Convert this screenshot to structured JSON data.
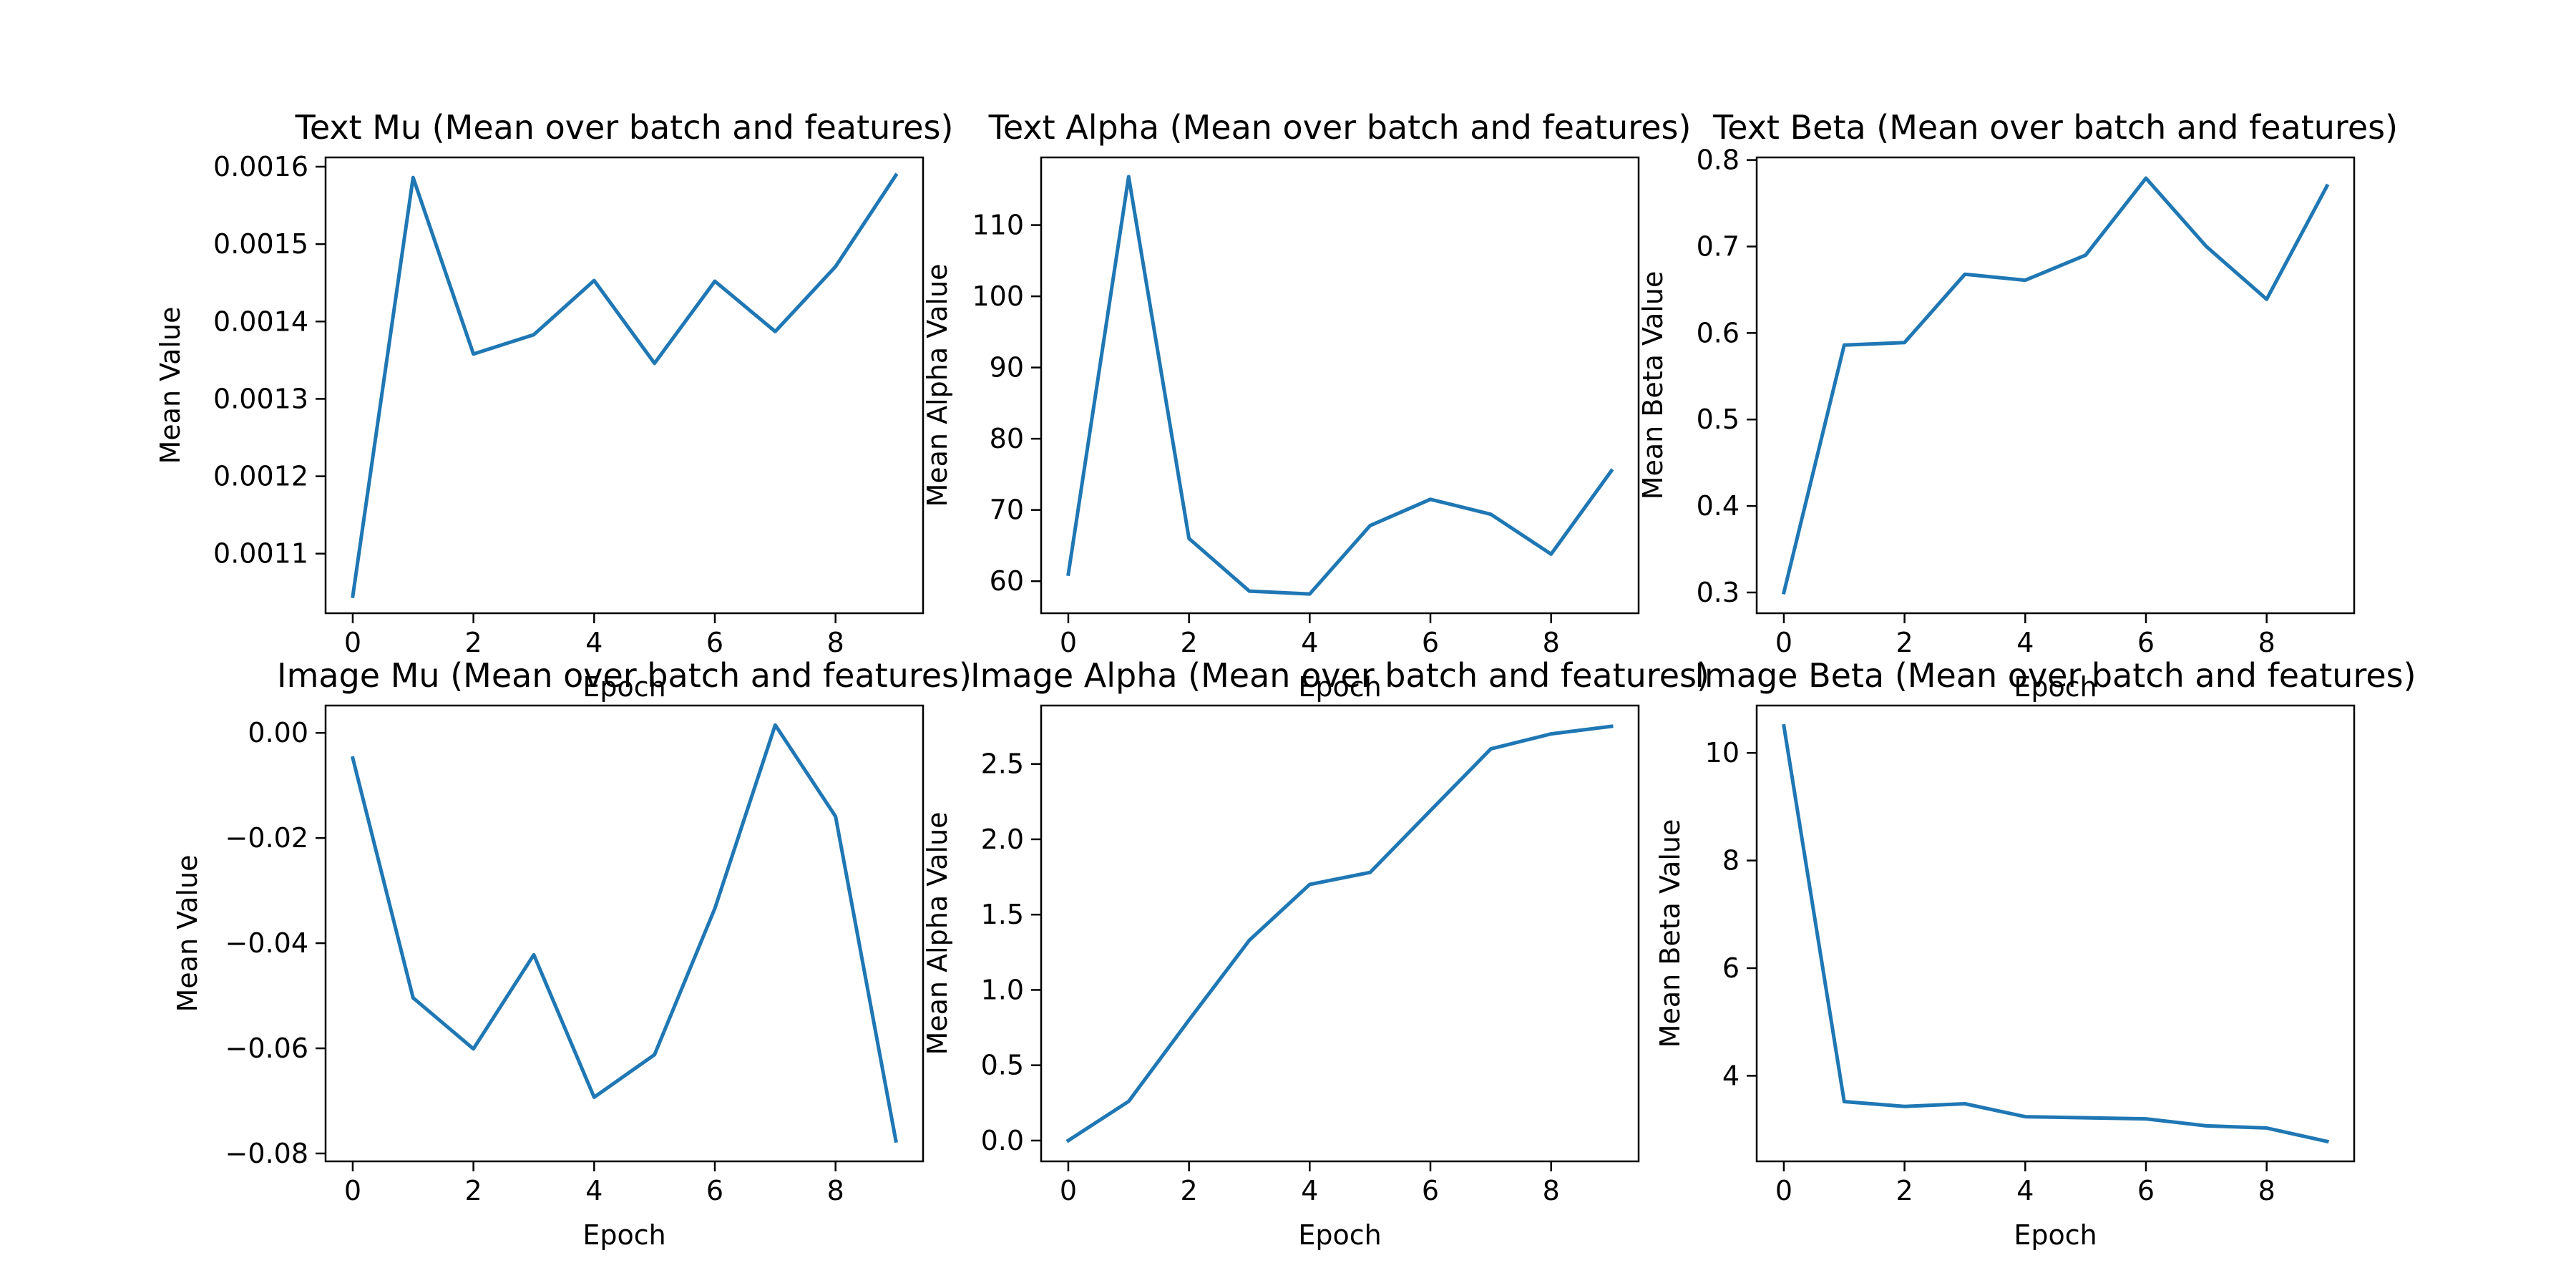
{
  "colors": {
    "line": "#1f77b4",
    "axes": "#000000",
    "background": "#ffffff"
  },
  "chart_data": [
    {
      "type": "line",
      "title": "Text Mu (Mean over batch and features)",
      "xlabel": "Epoch",
      "ylabel": "Mean Value",
      "grid": false,
      "xlim": [
        -0.45,
        9.45
      ],
      "ylim": [
        0.001023,
        0.001612
      ],
      "xticks": [
        0,
        2,
        4,
        6,
        8
      ],
      "xtick_labels": [
        "0",
        "2",
        "4",
        "6",
        "8"
      ],
      "yticks": [
        0.0011,
        0.0012,
        0.0013,
        0.0014,
        0.0015,
        0.0016
      ],
      "ytick_labels": [
        "0.0011",
        "0.0012",
        "0.0013",
        "0.0014",
        "0.0015",
        "0.0016"
      ],
      "x": [
        0,
        1,
        2,
        3,
        4,
        5,
        6,
        7,
        8,
        9
      ],
      "y": [
        0.001045,
        0.001586,
        0.001358,
        0.001383,
        0.001453,
        0.001346,
        0.001452,
        0.001387,
        0.001471,
        0.001589
      ]
    },
    {
      "type": "line",
      "title": "Text Alpha (Mean over batch and features)",
      "xlabel": "Epoch",
      "ylabel": "Mean Alpha Value",
      "grid": false,
      "xlim": [
        -0.45,
        9.45
      ],
      "ylim": [
        55.5,
        119.5
      ],
      "xticks": [
        0,
        2,
        4,
        6,
        8
      ],
      "xtick_labels": [
        "0",
        "2",
        "4",
        "6",
        "8"
      ],
      "yticks": [
        60,
        70,
        80,
        90,
        100,
        110
      ],
      "ytick_labels": [
        "60",
        "70",
        "80",
        "90",
        "100",
        "110"
      ],
      "x": [
        0,
        1,
        2,
        3,
        4,
        5,
        6,
        7,
        8,
        9
      ],
      "y": [
        61.0,
        116.8,
        66.0,
        58.6,
        58.2,
        67.8,
        71.5,
        69.4,
        63.8,
        75.5
      ]
    },
    {
      "type": "line",
      "title": "Text Beta (Mean over batch and features)",
      "xlabel": "Epoch",
      "ylabel": "Mean Beta Value",
      "grid": false,
      "xlim": [
        -0.45,
        9.45
      ],
      "ylim": [
        0.276,
        0.803
      ],
      "xticks": [
        0,
        2,
        4,
        6,
        8
      ],
      "xtick_labels": [
        "0",
        "2",
        "4",
        "6",
        "8"
      ],
      "yticks": [
        0.3,
        0.4,
        0.5,
        0.6,
        0.7,
        0.8
      ],
      "ytick_labels": [
        "0.3",
        "0.4",
        "0.5",
        "0.6",
        "0.7",
        "0.8"
      ],
      "x": [
        0,
        1,
        2,
        3,
        4,
        5,
        6,
        7,
        8,
        9
      ],
      "y": [
        0.3,
        0.586,
        0.589,
        0.668,
        0.661,
        0.69,
        0.779,
        0.7,
        0.639,
        0.77
      ]
    },
    {
      "type": "line",
      "title": "Image Mu (Mean over batch and features)",
      "xlabel": "Epoch",
      "ylabel": "Mean Value",
      "grid": false,
      "xlim": [
        -0.45,
        9.45
      ],
      "ylim": [
        -0.0815,
        0.0052
      ],
      "xticks": [
        0,
        2,
        4,
        6,
        8
      ],
      "xtick_labels": [
        "0",
        "2",
        "4",
        "6",
        "8"
      ],
      "yticks": [
        -0.08,
        -0.06,
        -0.04,
        -0.02,
        0.0
      ],
      "ytick_labels": [
        "−0.08",
        "−0.06",
        "−0.04",
        "−0.02",
        "0.00"
      ],
      "x": [
        0,
        1,
        2,
        3,
        4,
        5,
        6,
        7,
        8,
        9
      ],
      "y": [
        -0.0048,
        -0.0504,
        -0.0601,
        -0.0422,
        -0.0693,
        -0.0612,
        -0.0334,
        0.0015,
        -0.0159,
        -0.0776
      ]
    },
    {
      "type": "line",
      "title": "Image Alpha (Mean over batch and features)",
      "xlabel": "Epoch",
      "ylabel": "Mean Alpha Value",
      "grid": false,
      "xlim": [
        -0.45,
        9.45
      ],
      "ylim": [
        -0.138,
        2.888
      ],
      "xticks": [
        0,
        2,
        4,
        6,
        8
      ],
      "xtick_labels": [
        "0",
        "2",
        "4",
        "6",
        "8"
      ],
      "yticks": [
        0.0,
        0.5,
        1.0,
        1.5,
        2.0,
        2.5
      ],
      "ytick_labels": [
        "0.0",
        "0.5",
        "1.0",
        "1.5",
        "2.0",
        "2.5"
      ],
      "x": [
        0,
        1,
        2,
        3,
        4,
        5,
        6,
        7,
        8,
        9
      ],
      "y": [
        0.0,
        0.26,
        0.8,
        1.33,
        1.7,
        1.78,
        2.19,
        2.6,
        2.7,
        2.75
      ]
    },
    {
      "type": "line",
      "title": "Image Beta (Mean over batch and features)",
      "xlabel": "Epoch",
      "ylabel": "Mean Beta Value",
      "grid": false,
      "xlim": [
        -0.45,
        9.45
      ],
      "ylim": [
        2.41,
        10.88
      ],
      "xticks": [
        0,
        2,
        4,
        6,
        8
      ],
      "xtick_labels": [
        "0",
        "2",
        "4",
        "6",
        "8"
      ],
      "yticks": [
        4,
        6,
        8,
        10
      ],
      "ytick_labels": [
        "4",
        "6",
        "8",
        "10"
      ],
      "x": [
        0,
        1,
        2,
        3,
        4,
        5,
        6,
        7,
        8,
        9
      ],
      "y": [
        10.5,
        3.52,
        3.43,
        3.48,
        3.24,
        3.22,
        3.2,
        3.07,
        3.03,
        2.78
      ]
    }
  ]
}
